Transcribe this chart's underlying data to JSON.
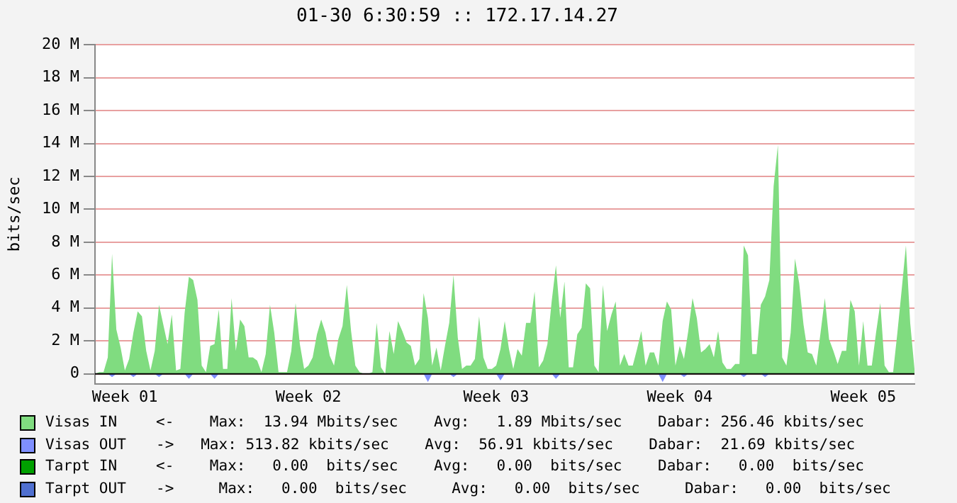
{
  "chart_data": {
    "type": "area",
    "title": "01-30 6:30:59 :: 172.17.14.27",
    "ylabel": "bits/sec",
    "categories": [
      null,
      null,
      null,
      null,
      null,
      null,
      null,
      "Week 01",
      null,
      null,
      null,
      null,
      null,
      null,
      null,
      null,
      null,
      null,
      null,
      null,
      null,
      null,
      null,
      null,
      null,
      null,
      null,
      null,
      null,
      null,
      null,
      null,
      null,
      null,
      null,
      null,
      null,
      null,
      null,
      null,
      null,
      null,
      null,
      null,
      null,
      null,
      null,
      null,
      null,
      null,
      "Week 02",
      null,
      null,
      null,
      null,
      null,
      null,
      null,
      null,
      null,
      null,
      null,
      null,
      null,
      null,
      null,
      null,
      null,
      null,
      null,
      null,
      null,
      null,
      null,
      null,
      null,
      null,
      null,
      null,
      null,
      null,
      null,
      null,
      null,
      null,
      null,
      null,
      null,
      null,
      null,
      null,
      null,
      null,
      null,
      "Week 03",
      null,
      null,
      null,
      null,
      null,
      null,
      null,
      null,
      null,
      null,
      null,
      null,
      null,
      null,
      null,
      null,
      null,
      null,
      null,
      null,
      null,
      null,
      null,
      null,
      null,
      null,
      null,
      null,
      null,
      null,
      null,
      null,
      null,
      null,
      null,
      null,
      null,
      null,
      null,
      null,
      null,
      null,
      "Week 04",
      null,
      null,
      null,
      null,
      null,
      null,
      null,
      null,
      null,
      null,
      null,
      null,
      null,
      null,
      null,
      null,
      null,
      null,
      null,
      null,
      null,
      null,
      null,
      null,
      null,
      null,
      null,
      null,
      null,
      null,
      null,
      null,
      null,
      null,
      null,
      null,
      null,
      null,
      null,
      null,
      null,
      null,
      "Week 05",
      null,
      null,
      null,
      null,
      null,
      null,
      null,
      null,
      null,
      null,
      null,
      null
    ],
    "ylim": [
      -0.6,
      20
    ],
    "yticks": [
      0,
      {
        "value": 2,
        "label": "2 M"
      },
      {
        "value": 4,
        "label": "4 M"
      },
      {
        "value": 6,
        "label": "6 M"
      },
      {
        "value": 8,
        "label": "8 M"
      },
      {
        "value": 10,
        "label": "10 M"
      },
      {
        "value": 12,
        "label": "12 M"
      },
      {
        "value": 14,
        "label": "14 M"
      },
      {
        "value": 16,
        "label": "16 M"
      },
      {
        "value": 18,
        "label": "18 M"
      },
      {
        "value": 20,
        "label": "20 M"
      }
    ],
    "grid": "y",
    "legend": "bottom",
    "marker": "none",
    "series": [
      {
        "name": "Visas IN",
        "color": "#80dc80",
        "values": [
          0,
          0.1,
          0.1,
          1,
          7.3,
          2.7,
          1.6,
          0.2,
          0.9,
          2.5,
          3.8,
          3.5,
          1.4,
          0.2,
          1.4,
          4.2,
          3,
          1.8,
          3.6,
          0.2,
          0.3,
          3.7,
          5.9,
          5.7,
          4.5,
          0.5,
          0.1,
          1.7,
          1.8,
          3.9,
          0.3,
          0.3,
          4.6,
          1.4,
          3.3,
          2.9,
          1,
          1,
          0.8,
          0.1,
          1.2,
          4.2,
          2.5,
          0.1,
          0.1,
          0.1,
          1.4,
          4.3,
          1.8,
          0.3,
          0.5,
          1,
          2.4,
          3.3,
          2.5,
          1.1,
          0.5,
          2.1,
          2.9,
          5.4,
          2.6,
          0.5,
          0.1,
          0,
          0,
          0.1,
          3.1,
          0.4,
          0,
          2.6,
          1.2,
          3.2,
          2.6,
          1.9,
          1.7,
          0.5,
          0.9,
          4.9,
          3.4,
          0.5,
          1.6,
          0.2,
          1.7,
          3.1,
          6,
          2.2,
          0.3,
          0.5,
          0.5,
          0.9,
          3.5,
          1,
          0.3,
          0.3,
          0.5,
          1.5,
          3.2,
          1.5,
          0.3,
          1.5,
          1.1,
          3.1,
          3.1,
          5,
          0.4,
          0.8,
          1.8,
          4.4,
          6.6,
          3.4,
          5.6,
          0.4,
          0.4,
          2.4,
          2.8,
          5.5,
          5.2,
          0.5,
          0.1,
          5.4,
          2.6,
          3.6,
          4.4,
          0.5,
          1.2,
          0.5,
          0.5,
          1.5,
          2.6,
          0.5,
          1.3,
          1.3,
          0.5,
          3.2,
          4.4,
          3.9,
          0.5,
          1.7,
          0.9,
          2.6,
          4.6,
          3.4,
          1.3,
          1.5,
          1.8,
          1,
          2.6,
          0.7,
          0.3,
          0.3,
          0.6,
          0.6,
          7.8,
          7.2,
          1.2,
          1.2,
          4.2,
          4.7,
          5.7,
          11.4,
          13.9,
          1,
          0.5,
          2.5,
          7,
          5.5,
          3,
          1.3,
          1.2,
          0.5,
          2.5,
          4.6,
          2.1,
          1.4,
          0.6,
          1.4,
          1.4,
          4.5,
          3.8,
          0.5,
          3.2,
          0.5,
          0.5,
          2.5,
          4.3,
          0.5,
          0.1,
          0.1,
          2.5,
          5.1,
          7.8,
          3.1,
          0.3
        ]
      },
      {
        "name": "Visas OUT",
        "color": "#7f8fff",
        "values": [
          0,
          0,
          0,
          0,
          -0.2,
          0,
          0,
          0,
          0,
          -0.2,
          0,
          0,
          0,
          0,
          0,
          -0.2,
          0,
          0,
          0,
          0,
          0,
          0,
          -0.3,
          0,
          0,
          0,
          0,
          0,
          -0.3,
          0,
          0,
          0,
          0,
          0,
          0,
          0,
          0,
          0,
          0,
          0,
          0,
          0,
          0,
          0,
          0,
          0,
          0,
          0,
          0,
          0,
          0,
          0,
          0,
          0,
          0,
          0,
          0,
          0,
          0,
          0,
          0,
          0,
          0,
          0,
          0,
          0,
          0,
          0,
          0,
          0,
          0,
          0,
          0,
          0,
          0,
          0,
          0,
          0,
          -0.5,
          0,
          0,
          0,
          0,
          0,
          -0.2,
          0,
          0,
          0,
          0,
          0,
          0,
          0,
          0,
          0,
          0,
          -0.4,
          0,
          0,
          0,
          0,
          0,
          0,
          0,
          0,
          0,
          0,
          0,
          0,
          -0.3,
          0,
          0,
          0,
          0,
          0,
          0,
          0,
          0,
          0,
          0,
          0,
          0,
          0,
          0,
          0,
          0,
          0,
          0,
          0,
          0,
          0,
          0,
          0,
          0,
          -0.5,
          0,
          0,
          0,
          0,
          -0.2,
          0,
          0,
          0,
          0,
          0,
          0,
          0,
          0,
          0,
          0,
          0,
          0,
          0,
          -0.2,
          0,
          0,
          0,
          0,
          -0.2,
          0,
          0,
          0,
          0,
          0,
          0,
          0,
          0,
          0,
          0,
          0,
          0,
          0,
          0,
          0,
          0,
          0,
          0,
          0,
          0,
          0,
          0,
          0,
          0,
          0,
          0,
          0,
          0,
          0,
          0,
          0,
          0,
          0,
          0,
          0
        ]
      },
      {
        "name": "Tarpt IN",
        "color": "#00a000",
        "values": [
          null,
          null,
          null,
          null,
          null,
          null,
          null,
          null,
          null,
          null,
          null,
          null,
          null,
          null,
          null,
          null,
          null,
          null,
          null,
          null,
          null,
          null,
          null,
          null,
          null,
          null,
          null,
          null,
          null,
          null,
          null,
          null,
          null,
          null,
          null,
          null,
          null,
          null,
          null,
          null,
          null,
          null,
          null,
          null,
          null,
          null,
          null,
          null,
          null,
          null,
          null,
          null,
          null,
          null,
          null,
          null,
          null,
          null,
          null,
          null,
          null,
          null,
          null,
          null,
          null,
          null,
          null,
          null,
          null,
          null,
          null,
          null,
          null,
          null,
          null,
          null,
          null,
          null,
          null,
          null,
          null,
          null,
          null,
          null,
          null,
          null,
          null,
          null,
          null,
          null,
          null,
          null,
          null,
          null,
          null,
          null,
          null,
          null,
          null,
          null,
          null,
          null,
          null,
          null,
          null,
          null,
          null,
          null,
          null,
          null,
          null,
          null,
          null,
          null,
          null,
          null,
          null,
          null,
          null,
          null,
          null,
          null,
          null,
          null,
          null,
          null,
          null,
          null,
          null,
          null,
          null,
          null,
          null,
          null,
          null,
          null,
          null,
          null,
          null,
          null,
          null,
          null,
          null,
          null,
          null,
          null,
          null,
          null,
          null,
          null,
          null,
          null,
          null,
          null,
          null,
          null,
          null,
          null,
          null,
          null,
          null,
          null,
          null,
          null,
          null,
          null,
          null,
          null,
          null,
          null,
          null,
          null,
          null,
          null,
          null,
          null,
          null,
          null,
          null,
          null,
          null,
          null,
          null,
          null,
          null,
          null,
          null,
          null,
          null,
          null,
          null,
          null,
          null
        ]
      },
      {
        "name": "Tarpt OUT",
        "color": "#5070d0",
        "values": [
          null,
          null,
          null,
          null,
          null,
          null,
          null,
          null,
          null,
          null,
          null,
          null,
          null,
          null,
          null,
          null,
          null,
          null,
          null,
          null,
          null,
          null,
          null,
          null,
          null,
          null,
          null,
          null,
          null,
          null,
          null,
          null,
          null,
          null,
          null,
          null,
          null,
          null,
          null,
          null,
          null,
          null,
          null,
          null,
          null,
          null,
          null,
          null,
          null,
          null,
          null,
          null,
          null,
          null,
          null,
          null,
          null,
          null,
          null,
          null,
          null,
          null,
          null,
          null,
          null,
          null,
          null,
          null,
          null,
          null,
          null,
          null,
          null,
          null,
          null,
          null,
          null,
          null,
          null,
          null,
          null,
          null,
          null,
          null,
          null,
          null,
          null,
          null,
          null,
          null,
          null,
          null,
          null,
          null,
          null,
          null,
          null,
          null,
          null,
          null,
          null,
          null,
          null,
          null,
          null,
          null,
          null,
          null,
          null,
          null,
          null,
          null,
          null,
          null,
          null,
          null,
          null,
          null,
          null,
          null,
          null,
          null,
          null,
          null,
          null,
          null,
          null,
          null,
          null,
          null,
          null,
          null,
          null,
          null,
          null,
          null,
          null,
          null,
          null,
          null,
          null,
          null,
          null,
          null,
          null,
          null,
          null,
          null,
          null,
          null,
          null,
          null,
          null,
          null,
          null,
          null,
          null,
          null,
          null,
          null,
          null,
          null,
          null,
          null,
          null,
          null,
          null,
          null,
          null,
          null,
          null,
          null,
          null,
          null,
          null,
          null,
          null,
          null,
          null,
          null,
          null,
          null,
          null,
          null,
          null,
          null,
          null,
          null,
          null,
          null,
          null,
          null,
          null
        ]
      }
    ],
    "annotations": [
      "<-    Max:  13.94 Mbits/sec    Avg:   1.89 Mbits/sec    Dabar: 256.46 kbits/sec",
      "->   Max: 513.82 kbits/sec    Avg:  56.91 kbits/sec    Dabar:  21.69 kbits/sec",
      "<-    Max:   0.00  bits/sec    Avg:   0.00  bits/sec    Dabar:   0.00  bits/sec",
      "->     Max:   0.00  bits/sec     Avg:   0.00  bits/sec     Dabar:   0.00  bits/sec"
    ]
  }
}
